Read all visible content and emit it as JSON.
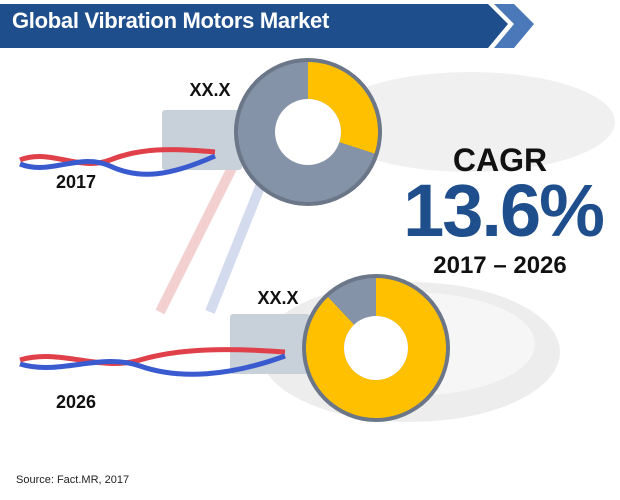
{
  "title": "Global Vibration Motors Market",
  "chart_data": {
    "type": "pie",
    "note_style": "donut charts drawn as vibration motors",
    "title": "",
    "charts": [
      {
        "year": "2017",
        "data_label": "XX.X",
        "segments": [
          {
            "value": 0.3,
            "color": "#ffc000"
          },
          {
            "value": 0.7,
            "color": "#8593a8"
          }
        ]
      },
      {
        "year": "2026",
        "data_label": "XX.X",
        "segments": [
          {
            "value": 0.88,
            "color": "#ffc000"
          },
          {
            "value": 0.12,
            "color": "#8593a8"
          }
        ]
      }
    ]
  },
  "cagr": {
    "label": "CAGR",
    "value": "13.6%",
    "period": "2017 – 2026"
  },
  "source": "Source: Fact.MR, 2017",
  "colors": {
    "banner": "#1f4e8c",
    "accent": "#1f4e8c",
    "highlight": "#ffc000",
    "wire_red": "#e0404a",
    "wire_blue": "#3a5bd0"
  }
}
